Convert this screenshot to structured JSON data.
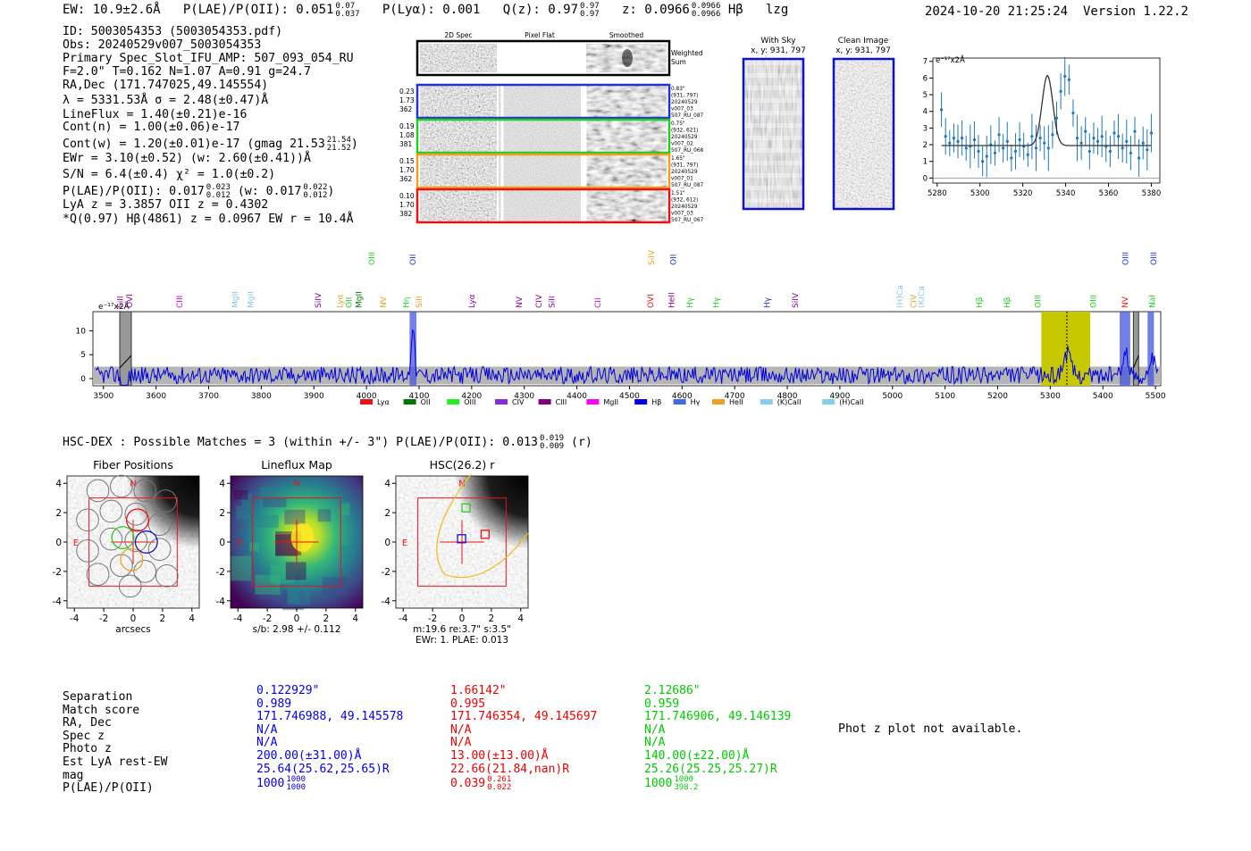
{
  "header": {
    "ew_label": "EW: 10.9±2.6Å",
    "plae_label": "P(LAE)/P(OII): 0.051",
    "plae_hi": "0.07",
    "plae_lo": "0.037",
    "plya_label": "P(Lyα): 0.001",
    "qz_label": "Q(z): 0.97",
    "qz_hi": "0.97",
    "qz_lo": "0.97",
    "z_label": "z: 0.0966",
    "z_hi": "0.0966",
    "z_lo": "0.0966",
    "line_name": "Hβ",
    "flag": "lzg",
    "datetime": "2024-10-20 21:25:24",
    "version": "Version 1.22.2"
  },
  "info": {
    "id": "ID: 5003054353 (5003054353.pdf)",
    "obs": "Obs: 20240529v007_5003054353",
    "primary": "Primary Spec_Slot_IFU_AMP: 507_093_054_RU",
    "fparams": "F=2.0\"  T=0.162  N=1.07  A=0.91  g=24.7",
    "radec": "RA,Dec (171.747025,49.145554)",
    "lambda": "λ = 5331.53Å  σ = 2.48(±0.47)Å",
    "lineflux": "LineFlux = 1.40(±0.21)e-16",
    "contn": "Cont(n) = 1.00(±0.06)e-17",
    "contw": "Cont(w) = 1.20(±0.01)e-17 (gmag 21.53",
    "contw_hi": "21.54",
    "contw_lo": "21.52",
    "contw_end": ")",
    "ewr": "EWr = 3.10(±0.52) (w: 2.60(±0.41))Å",
    "sn": "S/N = 6.4(±0.4)  χ² = 1.0(±0.2)",
    "plae": "P(LAE)/P(OII): 0.017",
    "plae_hi": "0.023",
    "plae_lo": "0.012",
    "plae_w": "(w: 0.017",
    "plae_w_hi": "0.022",
    "plae_w_lo": "0.012",
    "plae_w_end": ")",
    "lya": "LyA z = 3.3857  OII z = 0.4302",
    "q": "*Q(0.97) Hβ(4861) z = 0.0967  EW r = 10.4Å"
  },
  "cutouts": {
    "headers": [
      "2D Spec",
      "Pixel Flat",
      "Smoothed"
    ],
    "weighted": "Weighted Sum",
    "rows": [
      {
        "left": [
          "0.23",
          "1.73",
          "362"
        ],
        "right": [
          "0.83\"",
          "(931, 797)",
          "20240529",
          "v007_03",
          "507_RU_087"
        ],
        "color": "#2233cc"
      },
      {
        "left": [
          "0.19",
          "1.08",
          "381"
        ],
        "right": [
          "0.75\"",
          "(932, 621)",
          "20240529",
          "v007_02",
          "507_RU_068"
        ],
        "color": "#22cc22"
      },
      {
        "left": [
          "0.15",
          "1.70",
          "362"
        ],
        "right": [
          "1.65\"",
          "(931, 797)",
          "20240529",
          "v007_01",
          "507_RU_087"
        ],
        "color": "#f0a020"
      },
      {
        "left": [
          "0.10",
          "1.70",
          "382"
        ],
        "right": [
          "1.51\"",
          "(932, 612)",
          "20240529",
          "v007_03",
          "507_RU_067"
        ],
        "color": "#ee1111"
      }
    ],
    "with_sky": "With Sky",
    "with_sky_xy": "x, y: 931, 797",
    "clean": "Clean Image",
    "clean_xy": "x, y: 931, 797"
  },
  "zoom_chart": {
    "type": "scatter",
    "ylabel_text": "e⁻¹⁷x2Å",
    "xlim": [
      5278,
      5384
    ],
    "ylim": [
      -0.3,
      7.2
    ],
    "xticks": [
      5280,
      5300,
      5320,
      5340,
      5360,
      5380
    ],
    "yticks": [
      0,
      1,
      2,
      3,
      4,
      5,
      6,
      7
    ],
    "points_y": [
      4.1,
      2.5,
      2.1,
      2.4,
      2.2,
      2.4,
      1.8,
      1.9,
      2.3,
      1.6,
      1.0,
      1.3,
      2.0,
      1.5,
      2.6,
      1.8,
      2.2,
      1.2,
      1.6,
      2.3,
      1.9,
      1.4,
      2.5,
      1.8,
      2.4,
      2.1,
      1.8,
      2.6,
      3.6,
      5.2,
      6.1,
      5.9,
      3.9,
      2.4,
      2.1,
      2.8,
      1.6,
      2.4,
      2.2,
      2.5,
      1.9,
      1.6,
      2.7,
      2.5,
      1.8,
      2.2,
      1.5,
      2.8,
      1.2,
      2.1,
      1.7,
      2.7
    ],
    "fit_base": 1.95,
    "fit_peak": 4.2,
    "fit_center": 5331.5,
    "fit_sigma": 2.5
  },
  "spectrum": {
    "xlim": [
      3480,
      5510
    ],
    "ylim": [
      -1.5,
      14
    ],
    "xticks": [
      3500,
      3600,
      3700,
      3800,
      3900,
      4000,
      4100,
      4200,
      4300,
      4400,
      4500,
      4600,
      4700,
      4800,
      4900,
      5000,
      5100,
      5200,
      5300,
      5400,
      5500
    ],
    "yticks": [
      0,
      5,
      10
    ],
    "ylabel_text": "e⁻¹⁷x2Å",
    "highlight_center": 5331.5,
    "lines": [
      {
        "name": "SiII",
        "w": 3532,
        "color": "#8a0080",
        "row": "low"
      },
      {
        "name": "OVI",
        "w": 3550,
        "color": "#8a00b0",
        "row": "low"
      },
      {
        "name": "CIII",
        "w": 3645,
        "color": "#cc00cc",
        "row": "low"
      },
      {
        "name": "MgII",
        "w": 3750,
        "color": "#88c8e0",
        "row": "low"
      },
      {
        "name": "MgII",
        "w": 3780,
        "color": "#88c8e0",
        "row": "low"
      },
      {
        "name": "SiIV",
        "w": 3908,
        "color": "#8a00b0",
        "row": "low"
      },
      {
        "name": "Lyα",
        "w": 3950,
        "color": "#f0a020",
        "row": "low"
      },
      {
        "name": "OII",
        "w": 3967,
        "color": "#22cc22",
        "row": "low"
      },
      {
        "name": "MgII",
        "w": 3985,
        "color": "#007700",
        "row": "low"
      },
      {
        "name": "OIII",
        "w": 4010,
        "color": "#22cc22",
        "row": "high"
      },
      {
        "name": "NV",
        "w": 4032,
        "color": "#f0a020",
        "row": "low"
      },
      {
        "name": "Hη",
        "w": 4075,
        "color": "#22cc22",
        "row": "low"
      },
      {
        "name": "OII",
        "w": 4088,
        "color": "#2233cc",
        "row": "high"
      },
      {
        "name": "SiII",
        "w": 4100,
        "color": "#f0a020",
        "row": "low"
      },
      {
        "name": "Lyα",
        "w": 4200,
        "color": "#8a00b0",
        "row": "low"
      },
      {
        "name": "NV",
        "w": 4290,
        "color": "#8a00b0",
        "row": "low"
      },
      {
        "name": "CIV",
        "w": 4328,
        "color": "#8a0080",
        "row": "low"
      },
      {
        "name": "SiII",
        "w": 4352,
        "color": "#8a00b0",
        "row": "low"
      },
      {
        "name": "CII",
        "w": 4440,
        "color": "#cc00cc",
        "row": "low"
      },
      {
        "name": "OVI",
        "w": 4540,
        "color": "#ee1111",
        "row": "low"
      },
      {
        "name": "SiIV",
        "w": 4542,
        "color": "#f0a020",
        "row": "high"
      },
      {
        "name": "HeII",
        "w": 4580,
        "color": "#8a0080",
        "row": "low"
      },
      {
        "name": "OII",
        "w": 4583,
        "color": "#2233cc",
        "row": "high"
      },
      {
        "name": "Hγ",
        "w": 4615,
        "color": "#22cc22",
        "row": "low"
      },
      {
        "name": "Hγ",
        "w": 4665,
        "color": "#22cc22",
        "row": "low"
      },
      {
        "name": "Hγ",
        "w": 4762,
        "color": "#2233cc",
        "row": "low"
      },
      {
        "name": "SiIV",
        "w": 4815,
        "color": "#8a00b0",
        "row": "low"
      },
      {
        "name": "(H)Ca",
        "w": 5014,
        "color": "#88c8e0",
        "row": "low"
      },
      {
        "name": "CIV",
        "w": 5040,
        "color": "#f0a020",
        "row": "low"
      },
      {
        "name": "(K)Ca",
        "w": 5055,
        "color": "#88c8e0",
        "row": "low"
      },
      {
        "name": "Hβ",
        "w": 5165,
        "color": "#22cc22",
        "row": "low"
      },
      {
        "name": "Hβ",
        "w": 5218,
        "color": "#22cc22",
        "row": "low"
      },
      {
        "name": "OIII",
        "w": 5276,
        "color": "#22cc22",
        "row": "low"
      },
      {
        "name": "OIII",
        "w": 5382,
        "color": "#22cc22",
        "row": "low"
      },
      {
        "name": "NV",
        "w": 5442,
        "color": "#ee1111",
        "row": "low"
      },
      {
        "name": "OIII",
        "w": 5443,
        "color": "#2233cc",
        "row": "high"
      },
      {
        "name": "NaI",
        "w": 5494,
        "color": "#22cc22",
        "row": "low"
      },
      {
        "name": "OIII",
        "w": 5496,
        "color": "#2233cc",
        "row": "high"
      }
    ],
    "legend": [
      {
        "label": "Lyα",
        "color": "#ee1111"
      },
      {
        "label": "OII",
        "color": "#007700"
      },
      {
        "label": "OIII",
        "color": "#22ee22"
      },
      {
        "label": "CIV",
        "color": "#8a2be2"
      },
      {
        "label": "CIII",
        "color": "#800080"
      },
      {
        "label": "MgII",
        "color": "#ff00ff"
      },
      {
        "label": "Hβ",
        "color": "#0000ee"
      },
      {
        "label": "Hγ",
        "color": "#4169e1"
      },
      {
        "label": "HeII",
        "color": "#f0a020"
      },
      {
        "label": "(K)CaII",
        "color": "#87ceeb"
      },
      {
        "label": "(H)CaII",
        "color": "#87ceeb"
      }
    ]
  },
  "hsc": {
    "summary": "HSC-DEX : Possible Matches = 3 (within +/- 3\")  P(LAE)/P(OII): 0.013",
    "summary_hi": "0.019",
    "summary_lo": "0.009",
    "summary_end": "(r)",
    "panels": [
      {
        "title": "Fiber Positions",
        "xlabel": "arcsecs"
      },
      {
        "title": "Lineflux Map",
        "xlabel": "s/b: 2.98 +/- 0.112"
      },
      {
        "title": "HSC(26.2) r",
        "xlabel": "m:19.6  re:3.7\"  s:3.5\"",
        "xlabel2": "EWr: 1. PLAE: 0.013"
      }
    ],
    "ticks": [
      -4,
      -2,
      0,
      2,
      4
    ],
    "compass_n": "N",
    "compass_e": "E"
  },
  "matches": {
    "labels": [
      "Separation",
      "Match score",
      "RA, Dec",
      "Spec z",
      "Photo z",
      "Est LyA rest-EW",
      "mag",
      "P(LAE)/P(OII)"
    ],
    "columns": [
      {
        "color": "blue",
        "separation": "0.122929\"",
        "score": "0.989",
        "radec": "171.746988, 49.145578",
        "specz": "N/A",
        "photoz": "N/A",
        "ew": "200.00(±31.00)Å",
        "mag": "25.64(25.62,25.65)R",
        "plae": "1000",
        "plae_hi": "1000",
        "plae_lo": "1000"
      },
      {
        "color": "red",
        "separation": "1.66142\"",
        "score": "0.995",
        "radec": "171.746354, 49.145697",
        "specz": "N/A",
        "photoz": "N/A",
        "ew": "13.00(±13.00)Å",
        "mag": "22.66(21.84,nan)R",
        "plae": "0.039",
        "plae_hi": "0.261",
        "plae_lo": "0.022"
      },
      {
        "color": "green",
        "separation": "2.12686\"",
        "score": "0.959",
        "radec": "171.746906, 49.146139",
        "specz": "N/A",
        "photoz": "N/A",
        "ew": "140.00(±22.00)Å",
        "mag": "25.26(25.25,25.27)R",
        "plae": "1000",
        "plae_hi": "1000",
        "plae_lo": "398.2"
      }
    ],
    "photz_note": "Phot z plot not available."
  }
}
